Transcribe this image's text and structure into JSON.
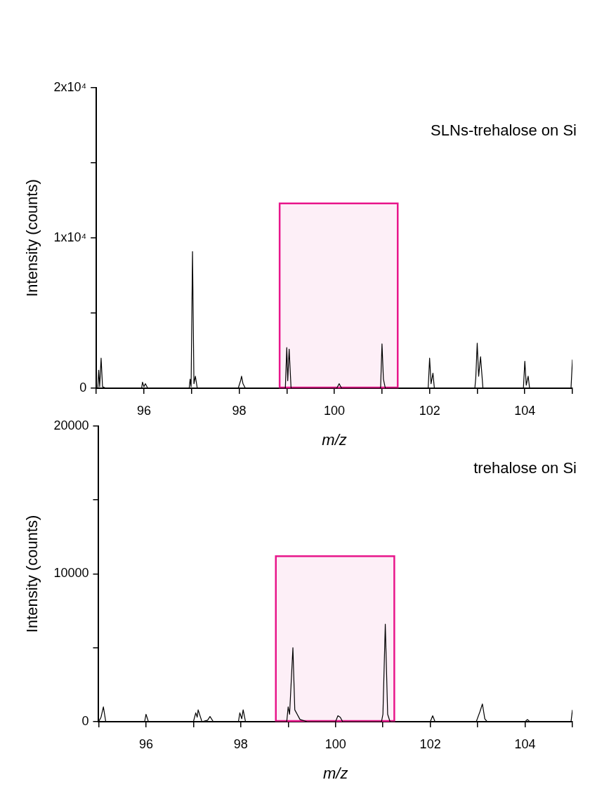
{
  "chart_data": [
    {
      "type": "line",
      "annotations": [
        "SLNs-trehalose on Si"
      ],
      "xlabel": "m/z",
      "ylabel": "Intensity (counts)",
      "xlim": [
        95,
        105
      ],
      "xticks": [
        {
          "value": 95,
          "label": null
        },
        96,
        {
          "value": 97,
          "label": null
        },
        98,
        {
          "value": 99,
          "label": null
        },
        100,
        {
          "value": 101,
          "label": null
        },
        102,
        {
          "value": 103,
          "label": null
        },
        104,
        {
          "value": 105,
          "label": null
        }
      ],
      "ylim": [
        0,
        20000
      ],
      "yticks": [
        0,
        {
          "value": 5000,
          "label": null
        },
        {
          "value": 10000,
          "label": "1x10⁴"
        },
        {
          "value": 15000,
          "label": null
        },
        {
          "value": 20000,
          "label": "2x10⁴"
        }
      ],
      "grid": false,
      "legend": false,
      "marker": "none",
      "line_style": "solid",
      "bands": [
        {
          "axis": "x",
          "from": 98.85,
          "to": 101.33,
          "color": "#e8168b"
        }
      ],
      "series": [
        {
          "color": "#000000",
          "x": [
            95,
            95.03,
            95.05,
            95.07,
            95.1,
            95.13,
            95.2,
            95.95,
            95.97,
            96.0,
            96.03,
            96.08,
            96.95,
            96.97,
            96.99,
            97.02,
            97.05,
            97.08,
            97.12,
            97.98,
            98.03,
            98.05,
            98.08,
            98.13,
            98.97,
            99.0,
            99.02,
            99.05,
            99.09,
            100.05,
            100.1,
            100.15,
            100.97,
            101.0,
            101.03,
            101.07,
            101.97,
            102.0,
            102.03,
            102.07,
            102.1,
            102.95,
            102.97,
            103.0,
            103.03,
            103.07,
            103.12,
            103.97,
            104.0,
            104.03,
            104.07,
            104.1,
            104.97,
            105
          ],
          "values": [
            0,
            0,
            1200,
            100,
            2000,
            100,
            0,
            0,
            400,
            100,
            300,
            0,
            0,
            600,
            100,
            9100,
            300,
            800,
            0,
            0,
            500,
            800,
            300,
            0,
            0,
            2700,
            500,
            2600,
            0,
            0,
            300,
            0,
            0,
            2950,
            600,
            0,
            0,
            2000,
            300,
            1000,
            0,
            0,
            700,
            3000,
            800,
            2100,
            0,
            0,
            1800,
            200,
            800,
            0,
            0,
            1900
          ]
        }
      ]
    },
    {
      "type": "line",
      "annotations": [
        "trehalose on Si"
      ],
      "xlabel": "m/z",
      "ylabel": "Intensity (counts)",
      "xlim": [
        95,
        105
      ],
      "xticks": [
        {
          "value": 95,
          "label": null
        },
        96,
        {
          "value": 97,
          "label": null
        },
        98,
        {
          "value": 99,
          "label": null
        },
        100,
        {
          "value": 101,
          "label": null
        },
        102,
        {
          "value": 103,
          "label": null
        },
        104,
        {
          "value": 105,
          "label": null
        }
      ],
      "ylim": [
        0,
        20000
      ],
      "yticks": [
        0,
        {
          "value": 5000,
          "label": null
        },
        10000,
        {
          "value": 15000,
          "label": null
        },
        20000
      ],
      "grid": false,
      "legend": false,
      "marker": "none",
      "line_style": "solid",
      "bands": [
        {
          "axis": "x",
          "from": 98.74,
          "to": 101.24,
          "color": "#e8168b"
        }
      ],
      "series": [
        {
          "color": "#000000",
          "x": [
            95,
            95.05,
            95.1,
            95.15,
            95.97,
            96.0,
            96.05,
            97.0,
            97.05,
            97.08,
            97.1,
            97.18,
            97.3,
            97.35,
            97.42,
            97.95,
            97.98,
            98.02,
            98.05,
            98.1,
            98.97,
            99.0,
            99.03,
            99.1,
            99.14,
            99.25,
            99.4,
            100.0,
            100.05,
            100.1,
            100.15,
            100.97,
            101.0,
            101.05,
            101.1,
            101.15,
            102.0,
            102.05,
            102.1,
            102.97,
            103.05,
            103.1,
            103.15,
            103.2,
            104.0,
            104.05,
            104.1,
            104.97,
            105
          ],
          "values": [
            0,
            300,
            1000,
            0,
            0,
            500,
            0,
            0,
            600,
            300,
            800,
            0,
            100,
            350,
            0,
            0,
            600,
            200,
            800,
            0,
            0,
            1000,
            500,
            5000,
            800,
            150,
            0,
            0,
            400,
            300,
            0,
            0,
            500,
            6600,
            500,
            0,
            0,
            400,
            0,
            0,
            700,
            1200,
            200,
            0,
            0,
            150,
            0,
            0,
            800
          ]
        }
      ]
    }
  ]
}
